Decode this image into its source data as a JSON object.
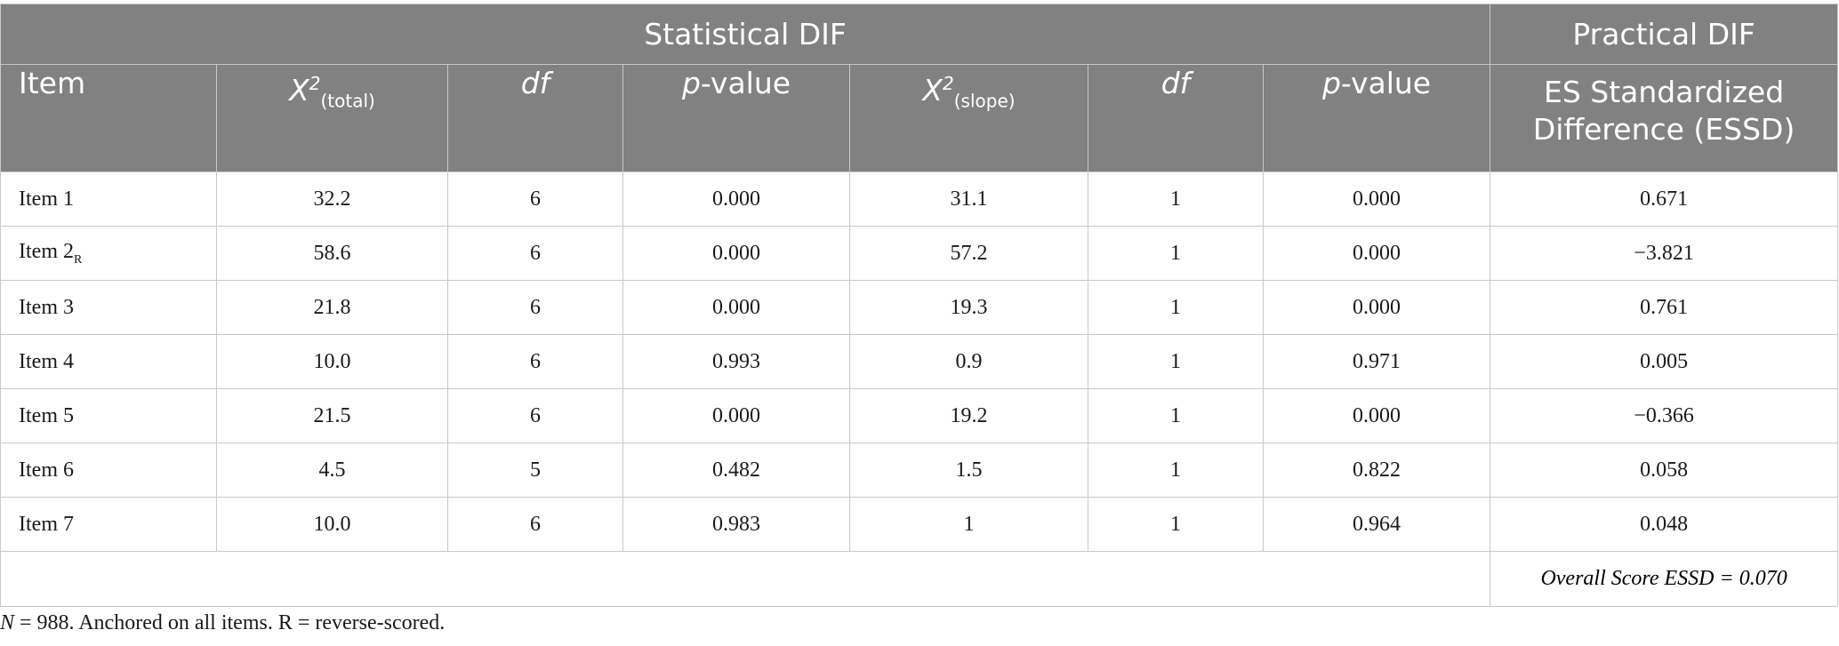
{
  "table": {
    "group_headers": {
      "statistical": "Statistical DIF",
      "practical": "Practical DIF"
    },
    "columns": {
      "item": "Item",
      "x2_total": {
        "base": "X",
        "sup": "2",
        "sub": "(total)"
      },
      "df": "df",
      "p_prefix": "p",
      "p_suffix": "-value",
      "x2_slope": {
        "base": "X",
        "sup": "2",
        "sub": "(slope)"
      },
      "essd_line1": "ES Standardized",
      "essd_line2": "Difference (ESSD)"
    },
    "rows": [
      {
        "item": "Item 1",
        "item_sub": "",
        "x2_total": "32.2",
        "df1": "6",
        "p1": "0.000",
        "x2_slope": "31.1",
        "df2": "1",
        "p2": "0.000",
        "essd": "0.671"
      },
      {
        "item": "Item 2",
        "item_sub": "R",
        "x2_total": "58.6",
        "df1": "6",
        "p1": "0.000",
        "x2_slope": "57.2",
        "df2": "1",
        "p2": "0.000",
        "essd": "−3.821"
      },
      {
        "item": "Item 3",
        "item_sub": "",
        "x2_total": "21.8",
        "df1": "6",
        "p1": "0.000",
        "x2_slope": "19.3",
        "df2": "1",
        "p2": "0.000",
        "essd": "0.761"
      },
      {
        "item": "Item 4",
        "item_sub": "",
        "x2_total": "10.0",
        "df1": "6",
        "p1": "0.993",
        "x2_slope": "0.9",
        "df2": "1",
        "p2": "0.971",
        "essd": "0.005"
      },
      {
        "item": "Item 5",
        "item_sub": "",
        "x2_total": "21.5",
        "df1": "6",
        "p1": "0.000",
        "x2_slope": "19.2",
        "df2": "1",
        "p2": "0.000",
        "essd": "−0.366"
      },
      {
        "item": "Item 6",
        "item_sub": "",
        "x2_total": "4.5",
        "df1": "5",
        "p1": "0.482",
        "x2_slope": "1.5",
        "df2": "1",
        "p2": "0.822",
        "essd": "0.058"
      },
      {
        "item": "Item 7",
        "item_sub": "",
        "x2_total": "10.0",
        "df1": "6",
        "p1": "0.983",
        "x2_slope": "1",
        "df2": "1",
        "p2": "0.964",
        "essd": "0.048"
      }
    ],
    "overall": "Overall Score ESSD = 0.070"
  },
  "note": {
    "n_label": "N",
    "text": " = 988. Anchored on all items. R = reverse-scored."
  }
}
